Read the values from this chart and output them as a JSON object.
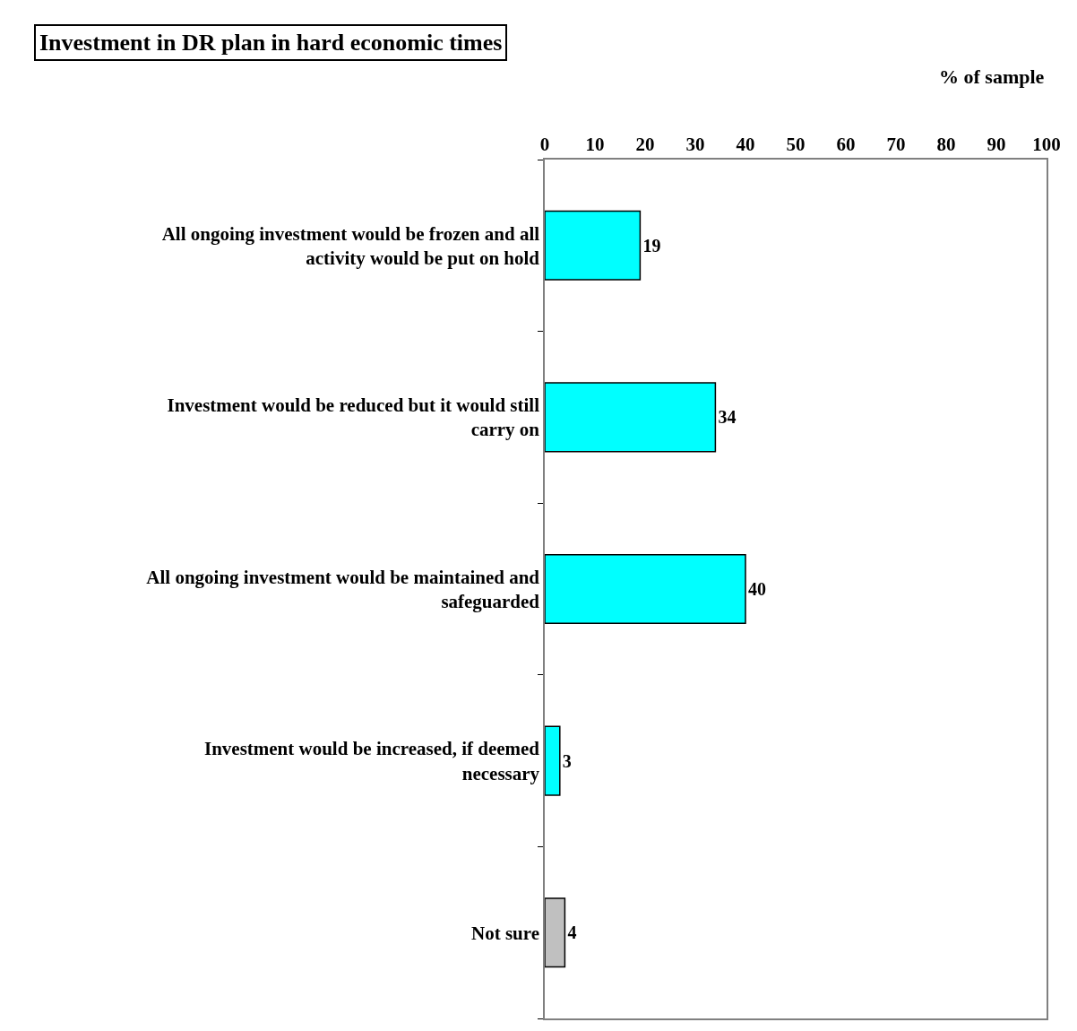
{
  "chart_data": {
    "type": "bar",
    "orientation": "horizontal",
    "title": "Investment in DR plan in hard economic times",
    "xlabel": "% of sample",
    "categories": [
      "All ongoing investment would be frozen and all activity would be put on hold",
      "Investment would be reduced but it would still carry on",
      "All ongoing investment would be maintained and safeguarded",
      "Investment would be increased, if deemed necessary",
      "Not sure"
    ],
    "values": [
      19,
      34,
      40,
      3,
      4
    ],
    "colors": [
      "#00ffff",
      "#00ffff",
      "#00ffff",
      "#00ffff",
      "#c0c0c0"
    ],
    "xlim": [
      0,
      100
    ],
    "xticks": [
      0,
      10,
      20,
      30,
      40,
      50,
      60,
      70,
      80,
      90,
      100
    ],
    "data_labels": true,
    "legend": false
  }
}
